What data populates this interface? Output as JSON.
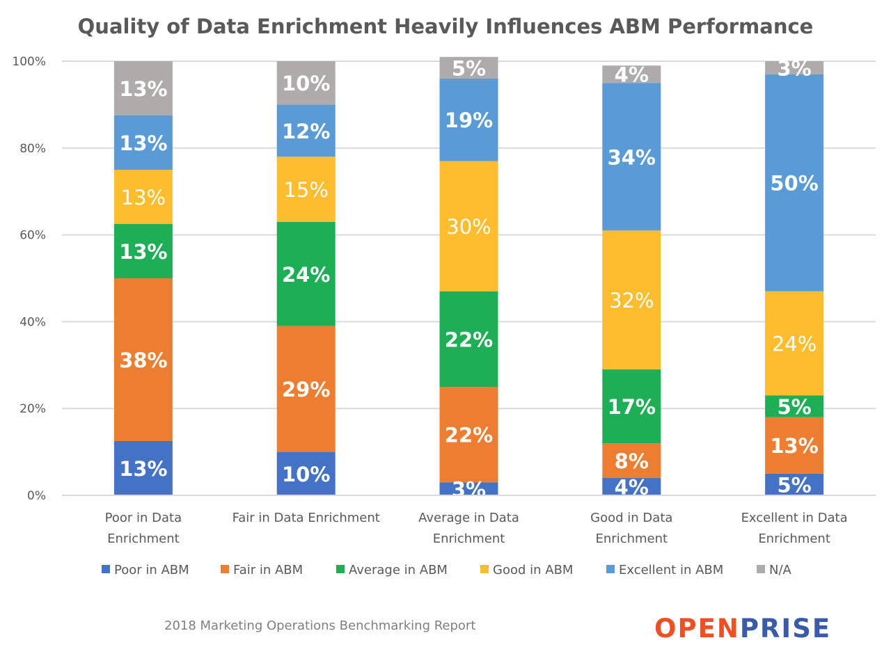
{
  "chart_data": {
    "type": "bar",
    "stacked": true,
    "percent_stacked": true,
    "title": "Quality of Data Enrichment Heavily Influences ABM Performance",
    "xlabel": "",
    "ylabel": "",
    "ylim": [
      0,
      100
    ],
    "y_ticks": [
      "0%",
      "20%",
      "40%",
      "60%",
      "80%",
      "100%"
    ],
    "grid": true,
    "legend_position": "bottom",
    "categories": [
      [
        "Poor in Data",
        "Enrichment"
      ],
      [
        "Fair in Data Enrichment"
      ],
      [
        "Average in Data",
        "Enrichment"
      ],
      [
        "Good in Data",
        "Enrichment"
      ],
      [
        "Excellent in Data",
        "Enrichment"
      ]
    ],
    "series": [
      {
        "name": "Poor in ABM",
        "color": "#4472C4",
        "values": [
          12.5,
          10,
          3,
          4,
          5
        ],
        "labels": [
          "13%",
          "10%",
          "3%",
          "4%",
          "5%"
        ]
      },
      {
        "name": "Fair in ABM",
        "color": "#ED7D31",
        "values": [
          37.5,
          29,
          22,
          8,
          13
        ],
        "labels": [
          "38%",
          "29%",
          "22%",
          "8%",
          "13%"
        ]
      },
      {
        "name": "Average in ABM",
        "color": "#1EAE55",
        "values": [
          12.5,
          24,
          22,
          17,
          5
        ],
        "labels": [
          "13%",
          "24%",
          "22%",
          "17%",
          "5%"
        ]
      },
      {
        "name": "Good in ABM",
        "color": "#FDBD2F",
        "values": [
          12.5,
          15,
          30,
          32,
          24
        ],
        "labels": [
          "13%",
          "15%",
          "30%",
          "32%",
          "24%"
        ]
      },
      {
        "name": "Excellent in ABM",
        "color": "#5B9BD5",
        "values": [
          12.5,
          12,
          19,
          34,
          50
        ],
        "labels": [
          "13%",
          "12%",
          "19%",
          "34%",
          "50%"
        ]
      },
      {
        "name": "N/A",
        "color": "#AFABAB",
        "values": [
          12.5,
          10,
          5,
          4,
          3
        ],
        "labels": [
          "13%",
          "10%",
          "5%",
          "4%",
          "3%"
        ]
      }
    ]
  },
  "footer": {
    "source": "2018 Marketing Operations Benchmarking Report",
    "logo_part1": "OPEN",
    "logo_part2": "PRISE",
    "logo_color1": "#F04E23",
    "logo_color2": "#3A5BAA"
  }
}
